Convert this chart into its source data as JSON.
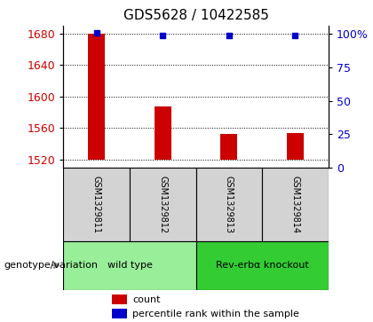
{
  "title": "GDS5628 / 10422585",
  "samples": [
    "GSM1329811",
    "GSM1329812",
    "GSM1329813",
    "GSM1329814"
  ],
  "count_values": [
    1680,
    1587,
    1553,
    1554
  ],
  "percentile_values": [
    95,
    93,
    93,
    93
  ],
  "ylim_left": [
    1510,
    1690
  ],
  "yticks_left": [
    1520,
    1560,
    1600,
    1640,
    1680
  ],
  "yticks_right": [
    0,
    25,
    50,
    75,
    100
  ],
  "ylim_right": [
    0,
    106.25
  ],
  "bar_color": "#cc0000",
  "dot_color": "#0000cc",
  "bar_bottom": 1520,
  "groups": [
    {
      "label": "wild type",
      "samples": [
        0,
        1
      ],
      "color": "#99ee99"
    },
    {
      "label": "Rev-erbα knockout",
      "samples": [
        2,
        3
      ],
      "color": "#33cc33"
    }
  ],
  "xlabel_label": "genotype/variation",
  "legend_items": [
    {
      "color": "#cc0000",
      "label": "count"
    },
    {
      "color": "#0000cc",
      "label": "percentile rank within the sample"
    }
  ],
  "sample_box_color": "#d3d3d3",
  "plot_bg": "#ffffff",
  "tick_label_color_left": "#cc0000",
  "tick_label_color_right": "#0000cc",
  "title_fontsize": 11,
  "tick_fontsize": 9,
  "bar_width": 0.25
}
